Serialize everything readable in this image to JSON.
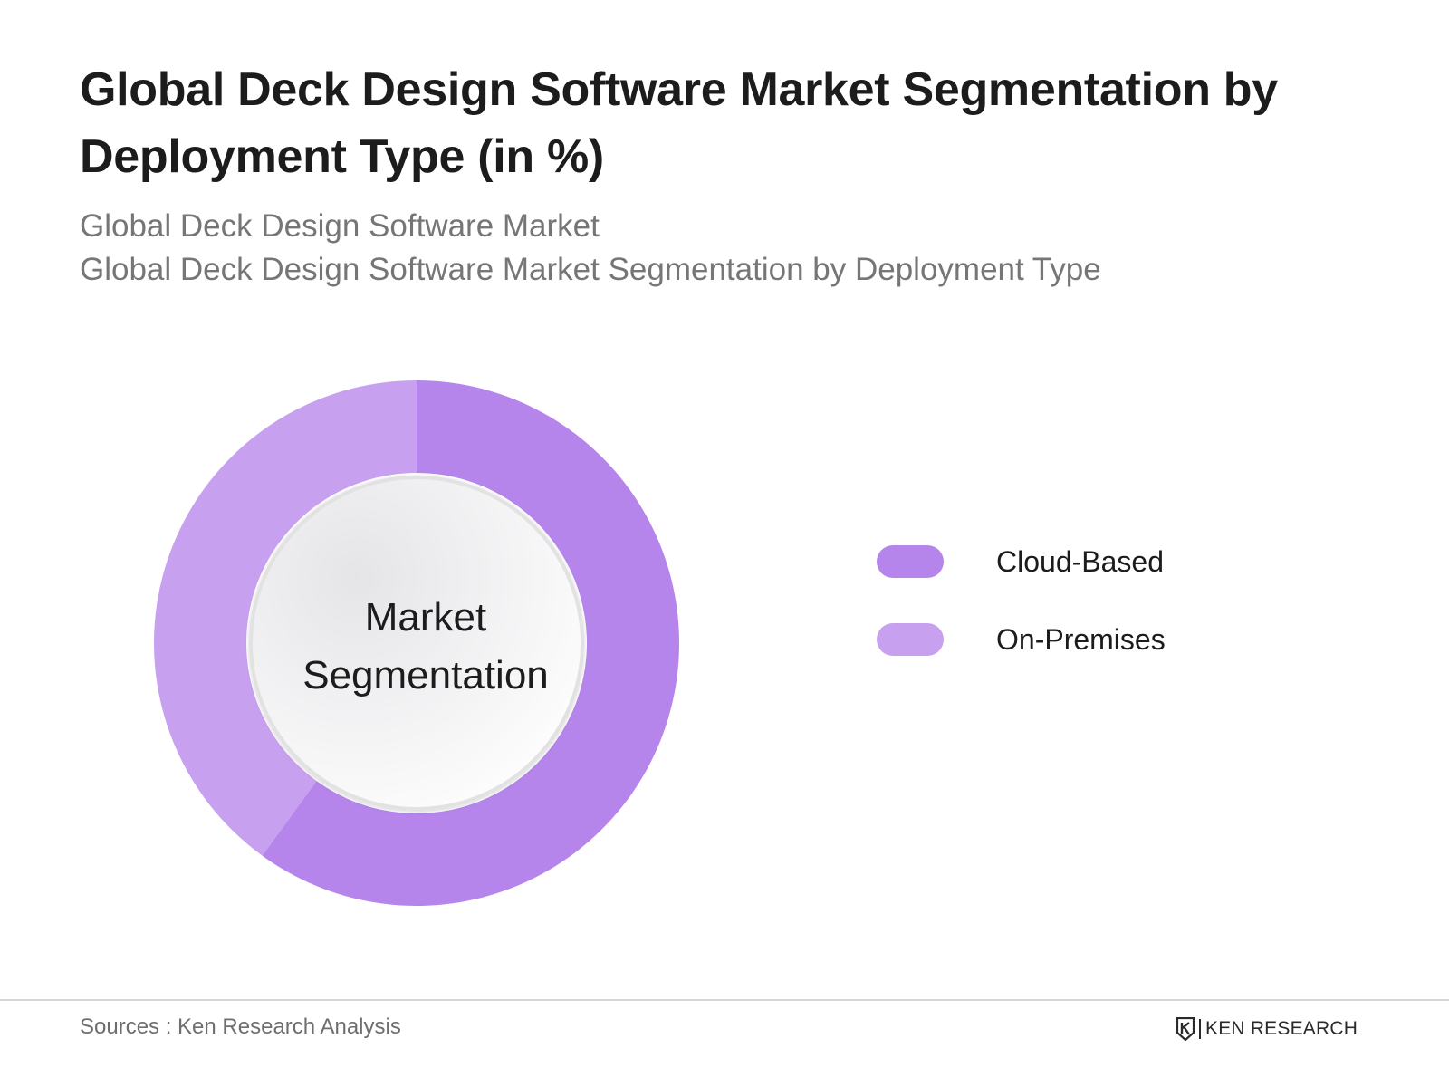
{
  "title": "Global Deck Design Software Market Segmentation by Deployment Type (in %)",
  "subtitle_1": "Global Deck Design Software Market",
  "subtitle_2": "Global Deck Design Software Market Segmentation by Deployment Type",
  "center_label": {
    "line1": "Market",
    "line2": "Segmentation"
  },
  "chart_data": {
    "type": "pie",
    "variant": "donut",
    "title": "Global Deck Design Software Market Segmentation by Deployment Type (in %)",
    "categories": [
      "Cloud-Based",
      "On-Premises"
    ],
    "values": [
      60,
      40
    ],
    "colors": [
      "#b585ec",
      "#c7a0ef"
    ],
    "start_angle": "12 o'clock",
    "direction": "clockwise",
    "legend_position": "right"
  },
  "legend": [
    {
      "label": "Cloud-Based",
      "color": "#b585ec"
    },
    {
      "label": "On-Premises",
      "color": "#c7a0ef"
    }
  ],
  "footer": {
    "sources": "Sources : Ken Research Analysis",
    "brand": "KEN RESEARCH"
  }
}
